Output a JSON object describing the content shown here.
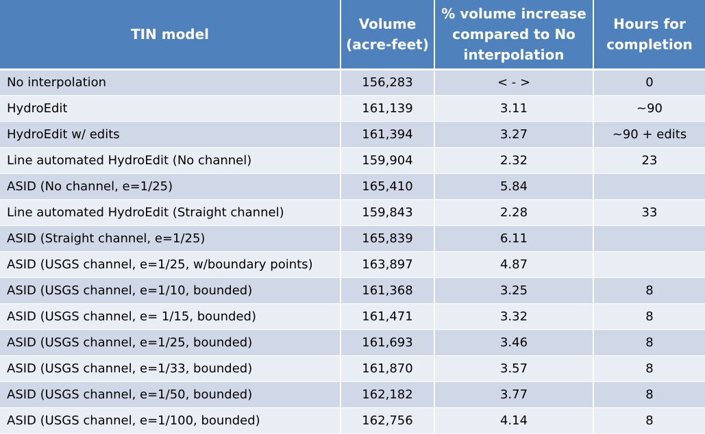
{
  "table": {
    "headers": [
      "TIN model",
      "Volume (acre-feet)",
      "% volume increase compared to No interpolation",
      "Hours for completion"
    ],
    "rows": [
      [
        "No interpolation",
        "156,283",
        "< - >",
        "0"
      ],
      [
        "HydroEdit",
        "161,139",
        "3.11",
        "~90"
      ],
      [
        "HydroEdit w/ edits",
        "161,394",
        "3.27",
        "~90 + edits"
      ],
      [
        "Line automated HydroEdit (No channel)",
        "159,904",
        "2.32",
        "23"
      ],
      [
        "ASID (No channel, e=1/25)",
        "165,410",
        "5.84",
        ""
      ],
      [
        "Line automated HydroEdit  (Straight channel)",
        "159,843",
        "2.28",
        "33"
      ],
      [
        "ASID  (Straight channel, e=1/25)",
        "165,839",
        "6.11",
        ""
      ],
      [
        "ASID (USGS channel, e=1/25, w/boundary points)",
        "163,897",
        "4.87",
        ""
      ],
      [
        "ASID (USGS channel, e=1/10, bounded)",
        "161,368",
        "3.25",
        "8"
      ],
      [
        "ASID (USGS channel, e= 1/15, bounded)",
        "161,471",
        "3.32",
        "8"
      ],
      [
        "ASID (USGS channel, e=1/25, bounded)",
        "161,693",
        "3.46",
        "8"
      ],
      [
        "ASID (USGS channel, e=1/33, bounded)",
        "161,870",
        "3.57",
        "8"
      ],
      [
        "ASID (USGS channel, e=1/50, bounded)",
        "162,182",
        "3.77",
        "8"
      ],
      [
        "ASID (USGS channel, e=1/100, bounded)",
        "162,756",
        "4.14",
        "8"
      ]
    ]
  },
  "colors": {
    "header_bg": "#4f81bd",
    "header_text": "#ffffff",
    "row_odd": "#d0d8e8",
    "row_even": "#e9edf4"
  }
}
